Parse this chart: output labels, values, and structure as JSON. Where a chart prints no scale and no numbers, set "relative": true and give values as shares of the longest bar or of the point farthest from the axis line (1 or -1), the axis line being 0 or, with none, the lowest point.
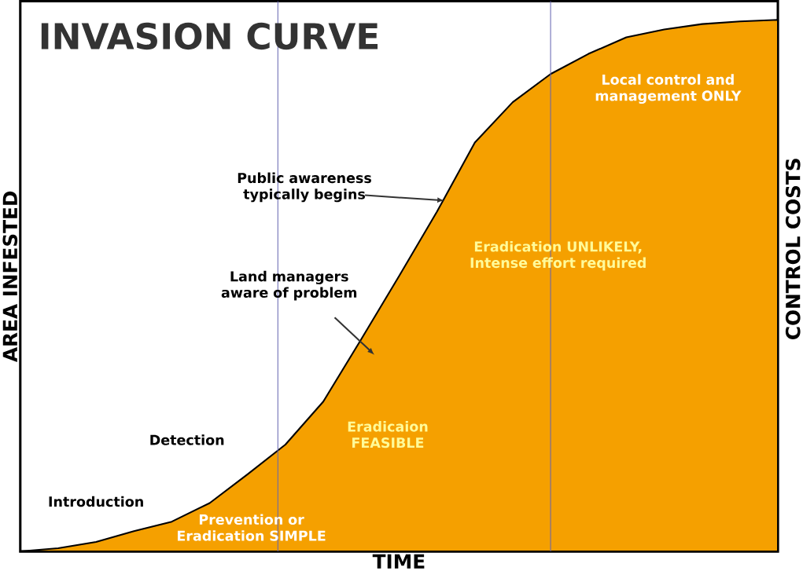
{
  "chart_data": {
    "type": "area",
    "title": "INVASION CURVE",
    "xlabel": "TIME",
    "ylabel": "AREA INFESTED",
    "y2label": "CONTROL COSTS",
    "relative": true,
    "tick_labels": false,
    "categories": [
      null,
      null,
      null,
      null,
      null,
      null,
      null,
      null,
      null,
      null,
      null,
      null,
      null,
      null,
      null,
      null,
      null,
      null,
      null,
      null,
      null
    ],
    "series": [
      {
        "color": "#f5a000",
        "values": [
          0,
          0.006,
          0.018,
          0.038,
          0.056,
          0.091,
          0.145,
          0.201,
          0.282,
          0.399,
          0.518,
          0.639,
          0.769,
          0.845,
          0.898,
          0.936,
          0.967,
          0.982,
          0.992,
          0.997,
          1
        ]
      }
    ],
    "annotations": [
      "Local control and management ONLY",
      "Public awareness typically begins",
      "Eradication UNLIKELY, Intense effort required",
      "Land managers aware of problem",
      "Detection",
      "Eradicaion FEASIBLE",
      "Introduction",
      "Prevention or Eradication SIMPLE"
    ]
  }
}
